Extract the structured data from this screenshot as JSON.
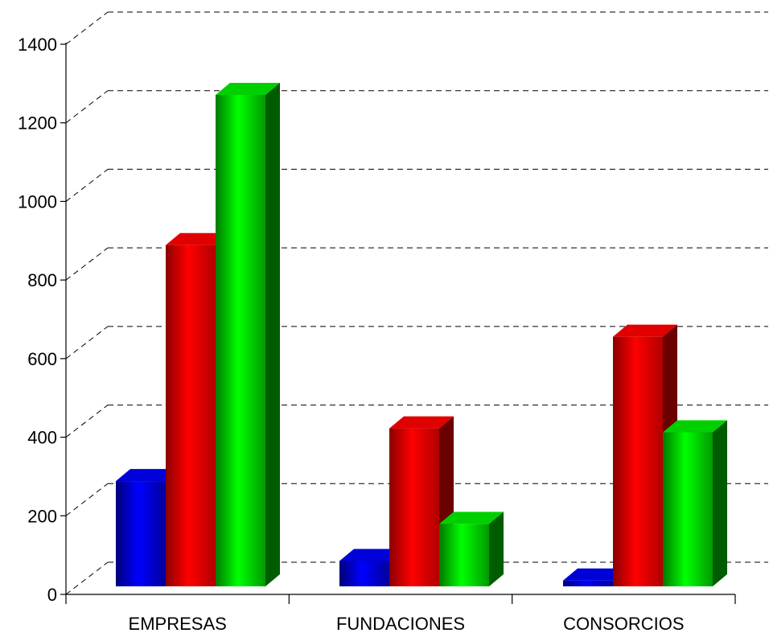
{
  "chart_data": {
    "type": "bar",
    "title": "",
    "xlabel": "",
    "ylabel": "",
    "categories": [
      "EMPRESAS",
      "FUNDACIONES",
      "CONSORCIOS"
    ],
    "series": [
      {
        "color": "#0000ff",
        "values": [
          270,
          65,
          15
        ]
      },
      {
        "color": "#ff0000",
        "values": [
          875,
          405,
          640
        ]
      },
      {
        "color": "#00ee00",
        "values": [
          1260,
          160,
          395
        ]
      }
    ],
    "ylim": [
      0,
      1400
    ],
    "yticks": [
      "0",
      "200",
      "400",
      "600",
      "800",
      "1000",
      "1200",
      "1400"
    ],
    "grid": true,
    "three_d": true,
    "legend": "none"
  }
}
